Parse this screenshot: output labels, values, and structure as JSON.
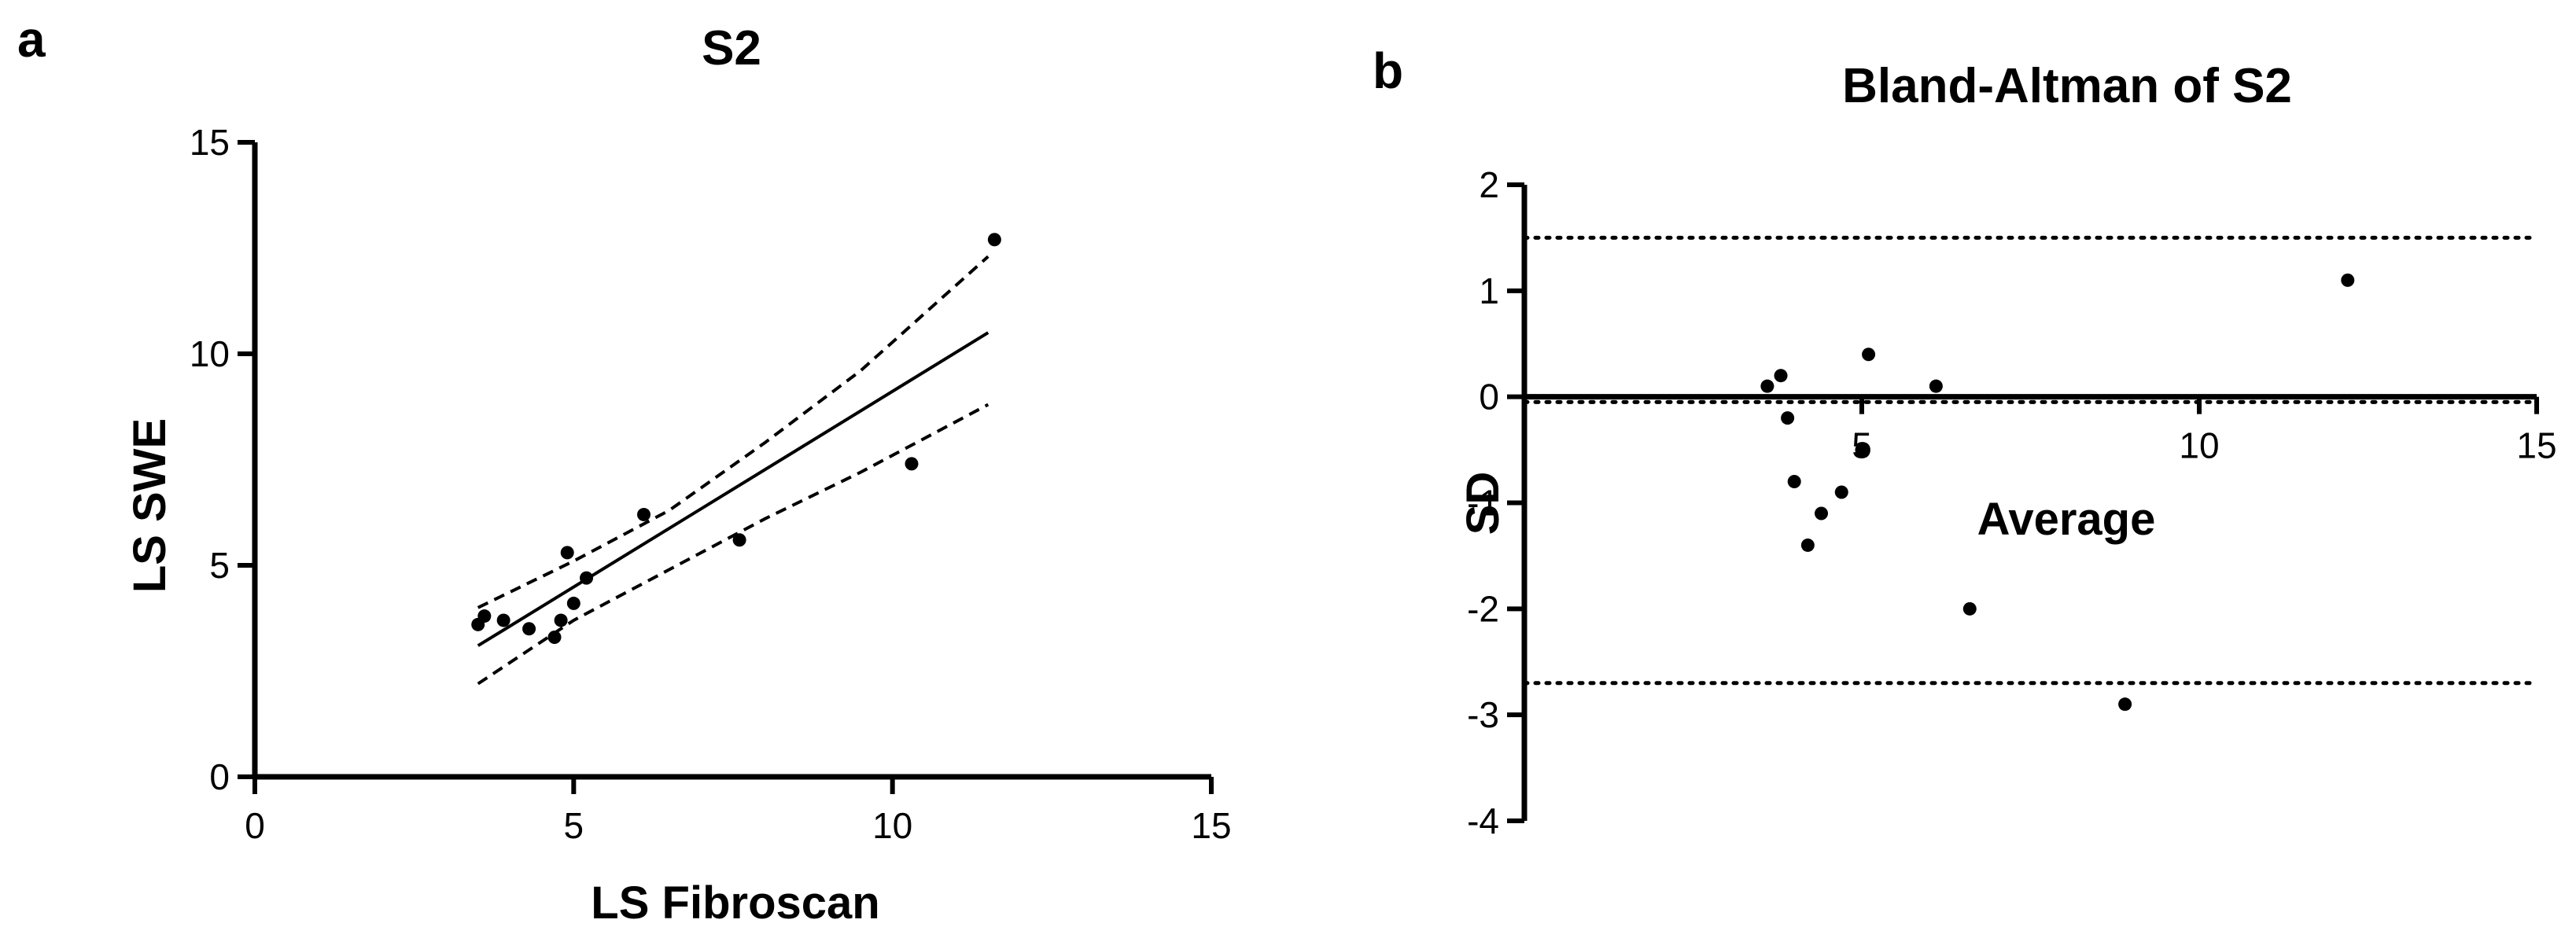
{
  "chart_data": [
    {
      "type": "scatter",
      "panel_letter": "a",
      "title": "S2",
      "xlabel": "LS Fibroscan",
      "ylabel": "LS SWE",
      "xlim": [
        0,
        15
      ],
      "ylim": [
        0,
        15
      ],
      "xticks": [
        "0",
        "5",
        "10",
        "15"
      ],
      "yticks": [
        "0",
        "5",
        "10",
        "15"
      ],
      "points": [
        {
          "x": 3.5,
          "y": 3.6
        },
        {
          "x": 3.6,
          "y": 3.8
        },
        {
          "x": 3.9,
          "y": 3.7
        },
        {
          "x": 4.3,
          "y": 3.5
        },
        {
          "x": 4.7,
          "y": 3.3
        },
        {
          "x": 4.8,
          "y": 3.7
        },
        {
          "x": 4.9,
          "y": 5.3
        },
        {
          "x": 5.0,
          "y": 4.1
        },
        {
          "x": 5.2,
          "y": 4.7
        },
        {
          "x": 6.1,
          "y": 6.2
        },
        {
          "x": 7.6,
          "y": 5.6
        },
        {
          "x": 10.3,
          "y": 7.4
        },
        {
          "x": 11.6,
          "y": 12.7
        }
      ],
      "regression_line": {
        "x": [
          3.5,
          11.5
        ],
        "y": [
          3.1,
          10.5
        ]
      },
      "confidence_band": {
        "upper": {
          "x": [
            3.5,
            5.0,
            6.5,
            8.0,
            9.5,
            11.5
          ],
          "y": [
            4.0,
            5.1,
            6.3,
            7.9,
            9.6,
            12.3
          ]
        },
        "lower": {
          "x": [
            3.5,
            5.0,
            6.5,
            8.0,
            9.5,
            11.5
          ],
          "y": [
            2.2,
            3.7,
            4.9,
            6.1,
            7.2,
            8.8
          ]
        }
      },
      "grid": false
    },
    {
      "type": "scatter",
      "panel_letter": "b",
      "title": "Bland-Altman of S2",
      "xlabel": "Average",
      "ylabel": "SD",
      "xlim": [
        0,
        15
      ],
      "ylim": [
        -4,
        2
      ],
      "xticks": [
        "5",
        "10",
        "15"
      ],
      "yticks": [
        "2",
        "1",
        "0",
        "-1",
        "-2",
        "-3",
        "-4"
      ],
      "points": [
        {
          "x": 3.6,
          "y": 0.1
        },
        {
          "x": 3.8,
          "y": 0.2
        },
        {
          "x": 3.9,
          "y": -0.2
        },
        {
          "x": 4.0,
          "y": -0.8
        },
        {
          "x": 4.2,
          "y": -1.4
        },
        {
          "x": 4.4,
          "y": -1.1
        },
        {
          "x": 4.7,
          "y": -0.9
        },
        {
          "x": 5.0,
          "y": -0.5
        },
        {
          "x": 5.1,
          "y": 0.4
        },
        {
          "x": 6.1,
          "y": 0.1
        },
        {
          "x": 6.6,
          "y": -2.0
        },
        {
          "x": 8.9,
          "y": -2.9
        },
        {
          "x": 12.2,
          "y": 1.1
        }
      ],
      "reference_lines": {
        "bias": -0.05,
        "upper_loa": 1.5,
        "lower_loa": -2.7
      },
      "grid": false
    }
  ]
}
